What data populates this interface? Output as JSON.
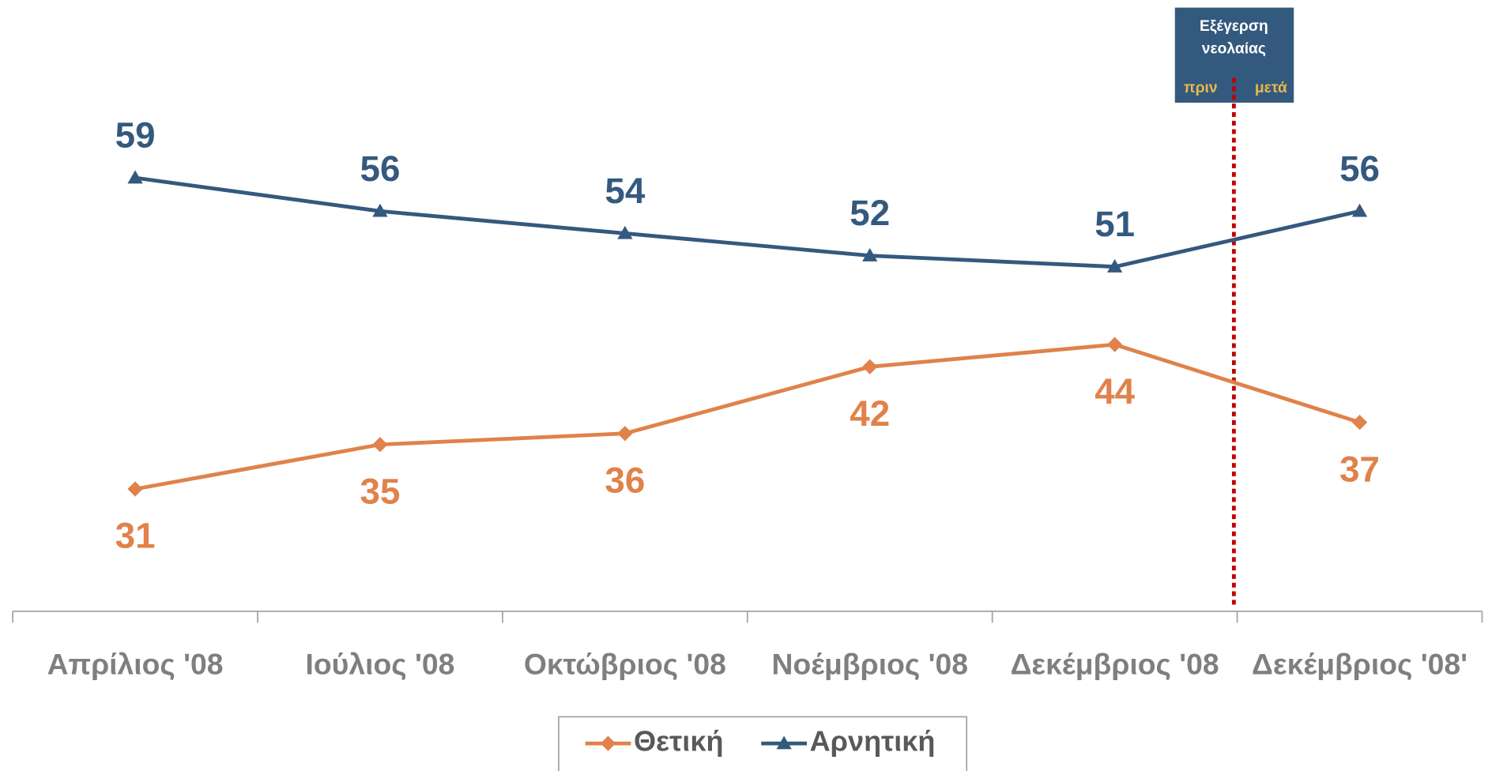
{
  "chart_data": {
    "type": "line",
    "categories": [
      "Απρίλιος '08",
      "Ιούλιος '08",
      "Οκτώβριος '08",
      "Νοέμβριος '08",
      "Δεκέμβριος '08",
      "Δεκέμβριος '08'"
    ],
    "series": [
      {
        "name": "Θετική",
        "color": "#e0824a",
        "marker": "diamond",
        "label_position": "below",
        "values": [
          31,
          35,
          36,
          42,
          44,
          37
        ]
      },
      {
        "name": "Αρνητική",
        "color": "#34597e",
        "marker": "triangle",
        "label_position": "above",
        "values": [
          59,
          56,
          54,
          52,
          51,
          56
        ]
      }
    ],
    "ylim": [
      20,
      75
    ],
    "annotation": {
      "lines": [
        "Εξέγερση",
        "νεολαίας"
      ],
      "before": "πριν",
      "after": "μετά"
    }
  }
}
